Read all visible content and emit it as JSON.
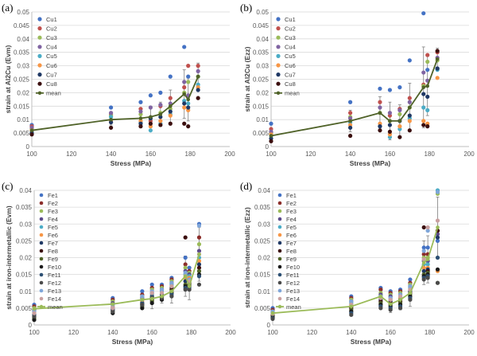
{
  "chart_data": [
    {
      "type": "scatter",
      "panel_label": "(a)",
      "xlabel": "Stress (MPa)",
      "ylabel": "strain at Al2Cu (Evm)",
      "xlim": [
        100,
        200
      ],
      "ylim": [
        0,
        0.05
      ],
      "x_ticks": [
        100,
        120,
        140,
        160,
        180,
        200
      ],
      "x_tick_labels": [
        "100",
        "120",
        "140",
        "160",
        "180",
        "200"
      ],
      "y_ticks": [
        0,
        0.005,
        0.01,
        0.015,
        0.02,
        0.025,
        0.03,
        0.035,
        0.04,
        0.045,
        0.05
      ],
      "y_tick_labels": [
        "0",
        "0.005",
        "0.01",
        "0.015",
        "0.02",
        "0.025",
        "0.03",
        "0.035",
        "0.04",
        "0.045",
        "0.05"
      ],
      "x": [
        100,
        140,
        155,
        160,
        165,
        170,
        177,
        179,
        184
      ],
      "series": [
        {
          "name": "Cu1",
          "color": "#4472c4",
          "values": [
            0.008,
            0.0145,
            0.0165,
            0.019,
            0.02,
            0.026,
            0.037,
            0.026,
            0.026
          ]
        },
        {
          "name": "Cu2",
          "color": "#c0504d",
          "values": [
            0.0075,
            0.012,
            0.014,
            0.0095,
            0.015,
            0.018,
            0.022,
            0.03,
            0.03
          ]
        },
        {
          "name": "Cu3",
          "color": "#9bbb59",
          "values": [
            0.0065,
            0.0115,
            0.012,
            0.0105,
            0.0125,
            0.014,
            0.02,
            0.024,
            0.026
          ]
        },
        {
          "name": "Cu4",
          "color": "#8064a2",
          "values": [
            0.007,
            0.0125,
            0.013,
            0.0145,
            0.0155,
            0.016,
            0.024,
            0.019,
            0.028
          ]
        },
        {
          "name": "Cu5",
          "color": "#4bacc6",
          "values": [
            0.0055,
            0.011,
            0.009,
            0.006,
            0.0085,
            0.012,
            0.017,
            0.016,
            0.023
          ]
        },
        {
          "name": "Cu6",
          "color": "#f79646",
          "values": [
            0.006,
            0.0095,
            0.0095,
            0.0075,
            0.0095,
            0.0115,
            0.0145,
            0.0135,
            0.022
          ]
        },
        {
          "name": "Cu7",
          "color": "#1f3864",
          "values": [
            0.005,
            0.009,
            0.0085,
            0.0105,
            0.011,
            0.013,
            0.016,
            0.0145,
            0.021
          ]
        },
        {
          "name": "Cu8",
          "color": "#3b0f0f",
          "values": [
            0.0045,
            0.007,
            0.0075,
            0.0085,
            0.008,
            0.0085,
            0.0085,
            0.0075,
            0.018
          ]
        }
      ],
      "mean": {
        "name": "mean",
        "color": "#4f6228",
        "values": [
          0.006,
          0.01,
          0.0105,
          0.011,
          0.012,
          0.015,
          0.0195,
          0.0175,
          0.026
        ],
        "error": [
          0.001,
          0.002,
          0.0035,
          0.004,
          0.0045,
          0.006,
          0.009,
          0.008,
          0.005
        ]
      }
    },
    {
      "type": "scatter",
      "panel_label": "(b)",
      "xlabel": "Stress (MPa)",
      "ylabel": "strain at Al2Cu (Ezz)",
      "xlim": [
        100,
        200
      ],
      "ylim": [
        0,
        0.05
      ],
      "x_ticks": [
        100,
        120,
        140,
        160,
        180,
        200
      ],
      "x_tick_labels": [
        "100",
        "120",
        "140",
        "160",
        "180",
        "200"
      ],
      "y_ticks": [
        0,
        0.005,
        0.01,
        0.015,
        0.02,
        0.025,
        0.03,
        0.035,
        0.04,
        0.045,
        0.05
      ],
      "y_tick_labels": [
        "0",
        "0.005",
        "0.01",
        "0.015",
        "0.02",
        "0.025",
        "0.03",
        "0.035",
        "0.04",
        "0.045",
        "0.05"
      ],
      "x": [
        100,
        140,
        155,
        160,
        165,
        170,
        177,
        179,
        184
      ],
      "series": [
        {
          "name": "Cu1",
          "color": "#4472c4",
          "values": [
            0.0085,
            0.0165,
            0.0215,
            0.021,
            0.022,
            0.032,
            0.0495,
            0.0285,
            0.029
          ]
        },
        {
          "name": "Cu2",
          "color": "#c0504d",
          "values": [
            0.0065,
            0.0125,
            0.0165,
            0.0115,
            0.014,
            0.018,
            0.023,
            0.034,
            0.035
          ]
        },
        {
          "name": "Cu3",
          "color": "#9bbb59",
          "values": [
            0.005,
            0.011,
            0.0125,
            0.0095,
            0.012,
            0.0145,
            0.0225,
            0.0315,
            0.032
          ]
        },
        {
          "name": "Cu4",
          "color": "#8064a2",
          "values": [
            0.0055,
            0.0105,
            0.0145,
            0.0125,
            0.0135,
            0.0165,
            0.0275,
            0.0245,
            0.033
          ]
        },
        {
          "name": "Cu5",
          "color": "#4bacc6",
          "values": [
            0.004,
            0.009,
            0.0075,
            0.0035,
            0.0065,
            0.0105,
            0.0145,
            0.0135,
            0.0285
          ]
        },
        {
          "name": "Cu6",
          "color": "#f79646",
          "values": [
            0.0045,
            0.008,
            0.0085,
            0.0045,
            0.0075,
            0.0095,
            0.0095,
            0.0085,
            0.0255
          ]
        },
        {
          "name": "Cu7",
          "color": "#1f3864",
          "values": [
            0.003,
            0.007,
            0.0075,
            0.008,
            0.0095,
            0.0115,
            0.0195,
            0.0185,
            0.029
          ]
        },
        {
          "name": "Cu8",
          "color": "#3b0f0f",
          "values": [
            0.002,
            0.004,
            0.006,
            0.0055,
            0.0035,
            0.006,
            0.008,
            0.0075,
            0.0355
          ]
        }
      ],
      "mean": {
        "name": "mean",
        "color": "#4f6228",
        "values": [
          0.004,
          0.0095,
          0.0125,
          0.0095,
          0.0095,
          0.0145,
          0.022,
          0.0225,
          0.0325
        ],
        "error": [
          0.002,
          0.004,
          0.006,
          0.007,
          0.006,
          0.009,
          0.015,
          0.011,
          0.004
        ]
      }
    },
    {
      "type": "scatter",
      "panel_label": "(c)",
      "xlabel": "Stress (MPa)",
      "ylabel": "strain at iron-intermetallic (Evm)",
      "xlim": [
        100,
        200
      ],
      "ylim": [
        0,
        0.04
      ],
      "x_ticks": [
        100,
        120,
        140,
        160,
        180,
        200
      ],
      "x_tick_labels": [
        "100",
        "120",
        "140",
        "160",
        "180",
        "200"
      ],
      "y_ticks": [
        0,
        0.005,
        0.01,
        0.015,
        0.02,
        0.025,
        0.03,
        0.035,
        0.04
      ],
      "y_tick_labels": [
        "0",
        "0.005",
        "0.01",
        "0.015",
        "0.02",
        "0.025",
        "0.03",
        "0.035",
        "0.04"
      ],
      "x": [
        100,
        140,
        155,
        160,
        165,
        170,
        177,
        179,
        184
      ],
      "series": [
        {
          "name": "Fe1",
          "color": "#4472c4",
          "values": [
            0.006,
            0.008,
            0.01,
            0.012,
            0.012,
            0.014,
            0.02,
            0.017,
            0.03
          ]
        },
        {
          "name": "Fe2",
          "color": "#8b2d2a",
          "values": [
            0.0055,
            0.0075,
            0.009,
            0.011,
            0.0115,
            0.0135,
            0.018,
            0.016,
            0.026
          ]
        },
        {
          "name": "Fe3",
          "color": "#9bbb59",
          "values": [
            0.005,
            0.007,
            0.0085,
            0.0105,
            0.011,
            0.013,
            0.017,
            0.0155,
            0.024
          ]
        },
        {
          "name": "Fe4",
          "color": "#5b4a8a",
          "values": [
            0.0045,
            0.0065,
            0.008,
            0.0095,
            0.0105,
            0.0125,
            0.016,
            0.015,
            0.022
          ]
        },
        {
          "name": "Fe5",
          "color": "#4bacc6",
          "values": [
            0.004,
            0.006,
            0.0075,
            0.009,
            0.01,
            0.012,
            0.015,
            0.0145,
            0.02
          ]
        },
        {
          "name": "Fe6",
          "color": "#f79646",
          "values": [
            0.0035,
            0.0055,
            0.007,
            0.0085,
            0.0095,
            0.0115,
            0.014,
            0.014,
            0.019
          ]
        },
        {
          "name": "Fe7",
          "color": "#1f3864",
          "values": [
            0.003,
            0.005,
            0.0065,
            0.008,
            0.009,
            0.011,
            0.013,
            0.0135,
            0.018
          ]
        },
        {
          "name": "Fe8",
          "color": "#3b0f0f",
          "values": [
            0.0025,
            0.0045,
            0.006,
            0.0075,
            0.0085,
            0.0105,
            0.026,
            0.0125,
            0.017
          ]
        },
        {
          "name": "Fe9",
          "color": "#4f6228",
          "values": [
            0.002,
            0.004,
            0.0055,
            0.007,
            0.008,
            0.01,
            0.012,
            0.012,
            0.016
          ]
        },
        {
          "name": "Fe10",
          "color": "#1a1a1a",
          "values": [
            0.0015,
            0.0035,
            0.005,
            0.0065,
            0.0075,
            0.0095,
            0.0115,
            0.0115,
            0.015
          ]
        },
        {
          "name": "Fe11",
          "color": "#2c4f73",
          "values": [
            0.003,
            0.0045,
            0.0065,
            0.0085,
            0.0085,
            0.009,
            0.011,
            0.011,
            0.0145
          ]
        },
        {
          "name": "Fe12",
          "color": "#4a4a4a",
          "values": [
            0.0025,
            0.004,
            0.006,
            0.008,
            0.008,
            0.0085,
            0.0105,
            0.0105,
            0.012
          ]
        },
        {
          "name": "Fe13",
          "color": "#7fa6d9",
          "values": [
            0.004,
            0.006,
            0.0085,
            0.01,
            0.0105,
            0.0125,
            0.0155,
            0.0135,
            0.0295
          ]
        },
        {
          "name": "Fe14",
          "color": "#c9a0a0",
          "values": [
            0.0035,
            0.005,
            0.0075,
            0.0095,
            0.0095,
            0.0115,
            0.0145,
            0.013,
            0.021
          ]
        }
      ],
      "mean": {
        "name": "mean",
        "color": "#9bbb59",
        "values": [
          0.0048,
          0.0062,
          0.0075,
          0.0078,
          0.0085,
          0.01,
          0.0145,
          0.0115,
          0.021
        ],
        "error": [
          0.001,
          0.001,
          0.0025,
          0.003,
          0.002,
          0.0035,
          0.006,
          0.004,
          0.008
        ]
      }
    },
    {
      "type": "scatter",
      "panel_label": "(d)",
      "xlabel": "Stress (MPa)",
      "ylabel": "strain at iron-intermetallic (Ezz)",
      "xlim": [
        100,
        200
      ],
      "ylim": [
        0,
        0.04
      ],
      "x_ticks": [
        100,
        120,
        140,
        160,
        180,
        200
      ],
      "x_tick_labels": [
        "100",
        "120",
        "140",
        "160",
        "180",
        "200"
      ],
      "y_ticks": [
        0,
        0.005,
        0.01,
        0.015,
        0.02,
        0.025,
        0.03,
        0.035,
        0.04
      ],
      "y_tick_labels": [
        "0",
        "0.005",
        "0.01",
        "0.015",
        "0.02",
        "0.025",
        "0.03",
        "0.035",
        "0.04"
      ],
      "x": [
        100,
        140,
        155,
        160,
        165,
        170,
        177,
        179,
        184
      ],
      "series": [
        {
          "name": "Fe1",
          "color": "#4472c4",
          "values": [
            0.005,
            0.0085,
            0.011,
            0.01,
            0.0105,
            0.0135,
            0.023,
            0.023,
            0.025
          ]
        },
        {
          "name": "Fe2",
          "color": "#8b2d2a",
          "values": [
            0.0045,
            0.008,
            0.0105,
            0.0095,
            0.01,
            0.0125,
            0.021,
            0.021,
            0.028
          ]
        },
        {
          "name": "Fe3",
          "color": "#9bbb59",
          "values": [
            0.004,
            0.0075,
            0.0095,
            0.009,
            0.0095,
            0.012,
            0.02,
            0.02,
            0.039
          ]
        },
        {
          "name": "Fe4",
          "color": "#5b4a8a",
          "values": [
            0.0038,
            0.007,
            0.009,
            0.0085,
            0.009,
            0.0115,
            0.019,
            0.019,
            0.027
          ]
        },
        {
          "name": "Fe5",
          "color": "#4bacc6",
          "values": [
            0.0035,
            0.0065,
            0.0085,
            0.008,
            0.0085,
            0.011,
            0.018,
            0.018,
            0.04
          ]
        },
        {
          "name": "Fe6",
          "color": "#f79646",
          "values": [
            0.0032,
            0.006,
            0.008,
            0.0075,
            0.008,
            0.0105,
            0.017,
            0.017,
            0.016
          ]
        },
        {
          "name": "Fe7",
          "color": "#1f3864",
          "values": [
            0.003,
            0.0055,
            0.0075,
            0.007,
            0.0075,
            0.01,
            0.016,
            0.0165,
            0.026
          ]
        },
        {
          "name": "Fe8",
          "color": "#3b0f0f",
          "values": [
            0.0028,
            0.005,
            0.007,
            0.0065,
            0.007,
            0.0095,
            0.029,
            0.016,
            0.028
          ]
        },
        {
          "name": "Fe9",
          "color": "#4f6228",
          "values": [
            0.0025,
            0.0045,
            0.0065,
            0.006,
            0.0065,
            0.009,
            0.015,
            0.0155,
            0.0125
          ]
        },
        {
          "name": "Fe10",
          "color": "#1a1a1a",
          "values": [
            0.0022,
            0.004,
            0.006,
            0.0055,
            0.006,
            0.0085,
            0.0145,
            0.015,
            0.0165
          ]
        },
        {
          "name": "Fe11",
          "color": "#2c4f73",
          "values": [
            0.002,
            0.0035,
            0.0055,
            0.005,
            0.0055,
            0.008,
            0.014,
            0.0145,
            0.02
          ]
        },
        {
          "name": "Fe12",
          "color": "#4a4a4a",
          "values": [
            0.0018,
            0.003,
            0.005,
            0.0045,
            0.005,
            0.0075,
            0.0135,
            0.014,
            0.0125
          ]
        },
        {
          "name": "Fe13",
          "color": "#7fa6d9",
          "values": [
            0.004,
            0.007,
            0.0085,
            0.008,
            0.009,
            0.0115,
            0.022,
            0.028,
            0.0395
          ]
        },
        {
          "name": "Fe14",
          "color": "#c9a0a0",
          "values": [
            0.0033,
            0.006,
            0.008,
            0.0075,
            0.0085,
            0.0105,
            0.0195,
            0.029,
            0.031
          ]
        }
      ],
      "mean": {
        "name": "mean",
        "color": "#9bbb59",
        "values": [
          0.0035,
          0.0055,
          0.0085,
          0.0062,
          0.0075,
          0.0095,
          0.0185,
          0.0195,
          0.029
        ],
        "error": [
          0.001,
          0.0015,
          0.002,
          0.0025,
          0.003,
          0.004,
          0.0065,
          0.007,
          0.009
        ]
      }
    }
  ]
}
